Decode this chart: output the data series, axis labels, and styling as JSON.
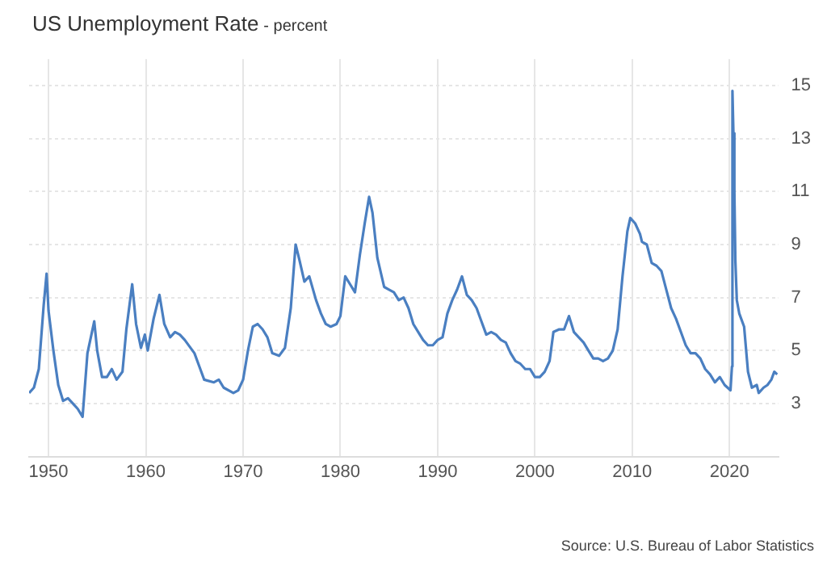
{
  "chart_data": {
    "type": "line",
    "title": "US Unemployment Rate",
    "subtitle": "- percent",
    "annotations": [
      "Source: U.S. Bureau of Labor Statistics"
    ],
    "x": [
      1948.0,
      1948.5,
      1949.0,
      1949.5,
      1949.8,
      1950.0,
      1950.5,
      1951.0,
      1951.5,
      1952.0,
      1952.5,
      1953.0,
      1953.5,
      1954.0,
      1954.7,
      1955.0,
      1955.5,
      1956.0,
      1956.5,
      1957.0,
      1957.6,
      1958.0,
      1958.6,
      1959.0,
      1959.5,
      1959.9,
      1960.2,
      1960.8,
      1961.4,
      1961.9,
      1962.5,
      1963.0,
      1963.5,
      1964.0,
      1965.0,
      1965.5,
      1966.0,
      1967.0,
      1967.5,
      1968.0,
      1969.0,
      1969.5,
      1970.0,
      1970.5,
      1971.0,
      1971.5,
      1972.0,
      1972.5,
      1973.0,
      1973.7,
      1974.3,
      1974.9,
      1975.4,
      1975.8,
      1976.3,
      1976.8,
      1977.5,
      1978.0,
      1978.5,
      1979.0,
      1979.6,
      1980.0,
      1980.5,
      1981.0,
      1981.5,
      1982.0,
      1982.5,
      1982.95,
      1983.3,
      1983.8,
      1984.5,
      1985.0,
      1985.5,
      1986.0,
      1986.5,
      1987.0,
      1987.5,
      1988.0,
      1988.5,
      1989.0,
      1989.5,
      1990.0,
      1990.5,
      1991.0,
      1991.5,
      1992.0,
      1992.5,
      1993.0,
      1993.5,
      1994.0,
      1994.5,
      1995.0,
      1995.5,
      1996.0,
      1996.5,
      1997.0,
      1997.5,
      1998.0,
      1998.5,
      1999.0,
      1999.5,
      2000.0,
      2000.5,
      2001.0,
      2001.5,
      2001.9,
      2002.5,
      2003.0,
      2003.5,
      2004.0,
      2004.5,
      2005.0,
      2005.5,
      2006.0,
      2006.5,
      2007.0,
      2007.5,
      2008.0,
      2008.5,
      2009.0,
      2009.5,
      2009.8,
      2010.3,
      2010.8,
      2011.0,
      2011.5,
      2012.0,
      2012.5,
      2013.0,
      2013.5,
      2014.0,
      2014.5,
      2015.0,
      2015.5,
      2016.0,
      2016.5,
      2017.0,
      2017.5,
      2018.0,
      2018.5,
      2019.0,
      2019.5,
      2020.1,
      2020.25,
      2020.3,
      2020.4,
      2020.5,
      2020.6,
      2020.75,
      2021.0,
      2021.5,
      2021.9,
      2022.3,
      2022.8,
      2023.0,
      2023.5,
      2023.9,
      2024.3,
      2024.6,
      2024.9
    ],
    "series": [
      {
        "color": "#4a7fc1",
        "values": [
          3.4,
          3.6,
          4.3,
          6.7,
          7.9,
          6.5,
          5.0,
          3.7,
          3.1,
          3.2,
          3.0,
          2.8,
          2.5,
          4.9,
          6.1,
          5.0,
          4.0,
          4.0,
          4.3,
          3.9,
          4.2,
          5.8,
          7.5,
          6.0,
          5.1,
          5.6,
          5.0,
          6.2,
          7.1,
          6.0,
          5.5,
          5.7,
          5.6,
          5.4,
          4.9,
          4.4,
          3.9,
          3.8,
          3.9,
          3.6,
          3.4,
          3.5,
          3.9,
          5.0,
          5.9,
          6.0,
          5.8,
          5.5,
          4.9,
          4.8,
          5.1,
          6.6,
          9.0,
          8.4,
          7.6,
          7.8,
          6.9,
          6.4,
          6.0,
          5.9,
          6.0,
          6.3,
          7.8,
          7.5,
          7.2,
          8.6,
          9.8,
          10.8,
          10.2,
          8.5,
          7.4,
          7.3,
          7.2,
          6.9,
          7.0,
          6.6,
          6.0,
          5.7,
          5.4,
          5.2,
          5.2,
          5.4,
          5.5,
          6.4,
          6.9,
          7.3,
          7.8,
          7.1,
          6.9,
          6.6,
          6.1,
          5.6,
          5.7,
          5.6,
          5.4,
          5.3,
          4.9,
          4.6,
          4.5,
          4.3,
          4.3,
          4.0,
          4.0,
          4.2,
          4.6,
          5.7,
          5.8,
          5.8,
          6.3,
          5.7,
          5.5,
          5.3,
          5.0,
          4.7,
          4.7,
          4.6,
          4.7,
          5.0,
          5.8,
          7.8,
          9.5,
          10.0,
          9.8,
          9.4,
          9.1,
          9.0,
          8.3,
          8.2,
          8.0,
          7.3,
          6.6,
          6.2,
          5.7,
          5.2,
          4.9,
          4.9,
          4.7,
          4.3,
          4.1,
          3.8,
          4.0,
          3.7,
          3.5,
          4.4,
          14.8,
          13.2,
          11.0,
          8.4,
          6.9,
          6.4,
          5.9,
          4.2,
          3.6,
          3.7,
          3.4,
          3.6,
          3.7,
          3.9,
          4.2,
          4.1
        ]
      }
    ],
    "xlim": [
      1948,
      2025
    ],
    "xticks": [
      1950,
      1960,
      1970,
      1980,
      1990,
      2000,
      2010,
      2020
    ],
    "ylim": [
      1,
      16
    ],
    "yticks": [
      3,
      5,
      7,
      9,
      11,
      13,
      15
    ],
    "grid": true,
    "legend": false,
    "marker": "none",
    "line_style": "solid"
  }
}
